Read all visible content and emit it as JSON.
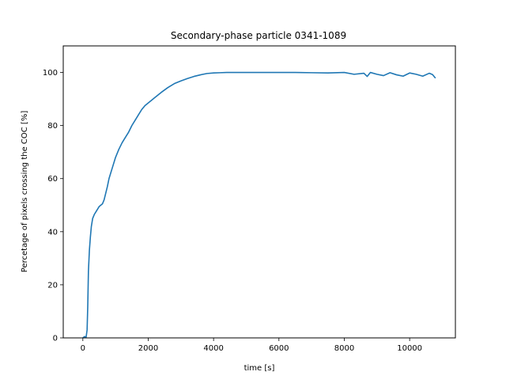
{
  "chart_data": {
    "type": "line",
    "title": "Secondary-phase particle 0341-1089",
    "xlabel": "time [s]",
    "ylabel": "Percetage of pixels crossing the COC [%]",
    "xlim": [
      -600,
      11400
    ],
    "ylim": [
      0,
      110
    ],
    "xticks": [
      0,
      2000,
      4000,
      6000,
      8000,
      10000
    ],
    "yticks": [
      0,
      20,
      40,
      60,
      80,
      100
    ],
    "grid": false,
    "series": [
      {
        "color": "#1f77b4",
        "x": [
          0,
          50,
          100,
          130,
          150,
          170,
          200,
          230,
          260,
          300,
          350,
          400,
          450,
          500,
          550,
          600,
          650,
          700,
          750,
          800,
          850,
          900,
          1000,
          1100,
          1200,
          1300,
          1400,
          1500,
          1600,
          1700,
          1800,
          1900,
          2000,
          2200,
          2400,
          2600,
          2800,
          3000,
          3200,
          3400,
          3600,
          3800,
          4000,
          4200,
          4400,
          4600,
          4800,
          5000,
          5500,
          6000,
          6500,
          7000,
          7500,
          8000,
          8300,
          8600,
          8700,
          8800,
          9000,
          9200,
          9400,
          9600,
          9800,
          10000,
          10200,
          10400,
          10600,
          10700,
          10780
        ],
        "y": [
          0,
          0.5,
          0.3,
          3,
          12,
          25,
          33,
          38,
          42,
          45,
          46.5,
          47.5,
          48.5,
          49.5,
          50,
          50.5,
          52,
          54.5,
          57,
          60,
          62,
          64,
          68,
          71,
          73.5,
          75.5,
          77.5,
          80,
          82,
          84,
          86,
          87.5,
          88.5,
          90.5,
          92.5,
          94.3,
          95.8,
          96.8,
          97.7,
          98.5,
          99.1,
          99.6,
          99.8,
          99.9,
          100,
          100,
          100,
          100,
          100,
          100,
          100,
          99.9,
          99.8,
          100,
          99.3,
          99.7,
          98.5,
          100,
          99.3,
          98.8,
          99.9,
          99.1,
          98.6,
          99.8,
          99.3,
          98.6,
          99.7,
          99.2,
          98.0
        ]
      }
    ]
  }
}
